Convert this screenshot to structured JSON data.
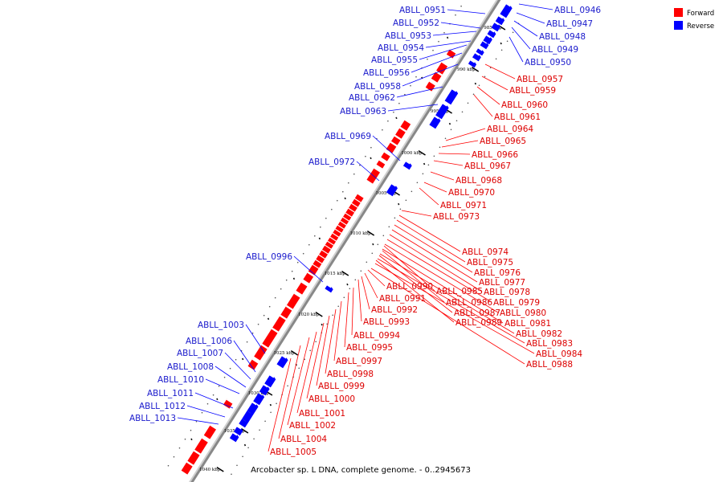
{
  "colors": {
    "forward": "#ff0000",
    "reverse": "#0000ff",
    "axis": "#888888",
    "forward_label": "#dd0000",
    "reverse_label": "#1a1acc"
  },
  "legend": [
    {
      "name": "Forward",
      "color": "#ff0000"
    },
    {
      "name": "Reverse",
      "color": "#0000ff"
    }
  ],
  "caption": "Arcobacter sp. L DNA, complete genome. - 0..2945673",
  "ticks": [
    "985 kbp",
    "990 kbp",
    "995 kbp",
    "1000 kbp",
    "1005 kbp",
    "1010 kbp",
    "1015 kbp",
    "1020 kbp",
    "1025 kbp",
    "1030 kbp",
    "1035 kbp",
    "1040 kbp"
  ],
  "reverse_labels": [
    "ABLL_0946",
    "ABLL_0947",
    "ABLL_0948",
    "ABLL_0949",
    "ABLL_0950",
    "ABLL_0951",
    "ABLL_0952",
    "ABLL_0953",
    "ABLL_0954",
    "ABLL_0955",
    "ABLL_0956",
    "ABLL_0958",
    "ABLL_0962",
    "ABLL_0963",
    "ABLL_0969",
    "ABLL_0972",
    "ABLL_0996",
    "ABLL_1003",
    "ABLL_1006",
    "ABLL_1007",
    "ABLL_1008",
    "ABLL_1010",
    "ABLL_1011",
    "ABLL_1012",
    "ABLL_1013"
  ],
  "forward_labels": [
    "ABLL_0957",
    "ABLL_0959",
    "ABLL_0960",
    "ABLL_0961",
    "ABLL_0964",
    "ABLL_0965",
    "ABLL_0966",
    "ABLL_0967",
    "ABLL_0968",
    "ABLL_0970",
    "ABLL_0971",
    "ABLL_0973",
    "ABLL_0974",
    "ABLL_0975",
    "ABLL_0976",
    "ABLL_0977",
    "ABLL_0978",
    "ABLL_0979",
    "ABLL_0980",
    "ABLL_0981",
    "ABLL_0982",
    "ABLL_0983",
    "ABLL_0984",
    "ABLL_0988",
    "ABLL_0985",
    "ABLL_0986",
    "ABLL_0987",
    "ABLL_0989",
    "ABLL_0990",
    "ABLL_0991",
    "ABLL_0992",
    "ABLL_0993",
    "ABLL_0994",
    "ABLL_0995",
    "ABLL_0997",
    "ABLL_0998",
    "ABLL_0999",
    "ABLL_1000",
    "ABLL_1001",
    "ABLL_1002",
    "ABLL_1004",
    "ABLL_1005"
  ]
}
